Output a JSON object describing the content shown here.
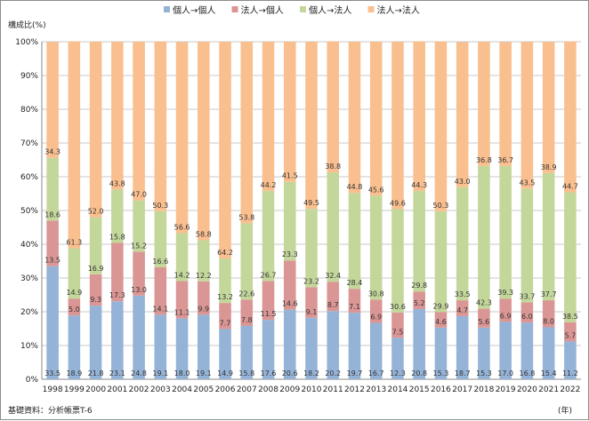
{
  "chart_data": {
    "type": "bar",
    "stacked": true,
    "percent": true,
    "title": "",
    "ylabel": "構成比(%)",
    "xlabel": "(年)",
    "source": "基礎資料：分析帳票T-6",
    "ylim": [
      0,
      100
    ],
    "yticks": [
      "0%",
      "10%",
      "20%",
      "30%",
      "40%",
      "50%",
      "60%",
      "70%",
      "80%",
      "90%",
      "100%"
    ],
    "grid": true,
    "legend_position": "top",
    "categories": [
      "1998",
      "1999",
      "2000",
      "2001",
      "2002",
      "2003",
      "2004",
      "2005",
      "2006",
      "2007",
      "2008",
      "2009",
      "2010",
      "2011",
      "2012",
      "2013",
      "2014",
      "2015",
      "2016",
      "2017",
      "2018",
      "2019",
      "2020",
      "2021",
      "2022"
    ],
    "series": [
      {
        "name": "個人→個人",
        "color": "#95b3d7",
        "values": [
          33.5,
          18.9,
          21.8,
          23.1,
          24.8,
          19.1,
          18.0,
          19.1,
          14.9,
          15.8,
          17.6,
          20.6,
          18.2,
          20.2,
          19.7,
          16.7,
          12.3,
          20.8,
          15.3,
          18.7,
          15.3,
          17.0,
          16.8,
          15.4,
          11.2
        ]
      },
      {
        "name": "法人→個人",
        "color": "#da9694",
        "values": [
          13.5,
          5.0,
          9.3,
          17.3,
          13.0,
          14.1,
          11.1,
          9.9,
          7.7,
          7.8,
          11.5,
          14.6,
          9.1,
          8.7,
          7.1,
          6.9,
          7.5,
          5.2,
          4.6,
          4.7,
          5.6,
          6.9,
          6.0,
          8.0,
          5.7
        ]
      },
      {
        "name": "個人→法人",
        "color": "#c4d79b",
        "values": [
          18.6,
          14.9,
          16.9,
          15.8,
          15.2,
          16.6,
          14.2,
          12.2,
          13.2,
          22.6,
          26.7,
          23.3,
          23.2,
          32.4,
          28.4,
          30.8,
          30.6,
          29.8,
          29.9,
          33.5,
          42.3,
          39.3,
          33.7,
          37.7,
          38.5
        ]
      },
      {
        "name": "法人→法人",
        "color": "#fabf8f",
        "values": [
          34.3,
          61.3,
          52.0,
          43.8,
          47.0,
          50.3,
          56.6,
          58.8,
          64.2,
          53.8,
          44.2,
          41.5,
          49.5,
          38.8,
          44.8,
          45.6,
          49.6,
          44.3,
          50.3,
          43.0,
          36.8,
          36.7,
          43.5,
          38.9,
          44.7
        ]
      }
    ]
  }
}
